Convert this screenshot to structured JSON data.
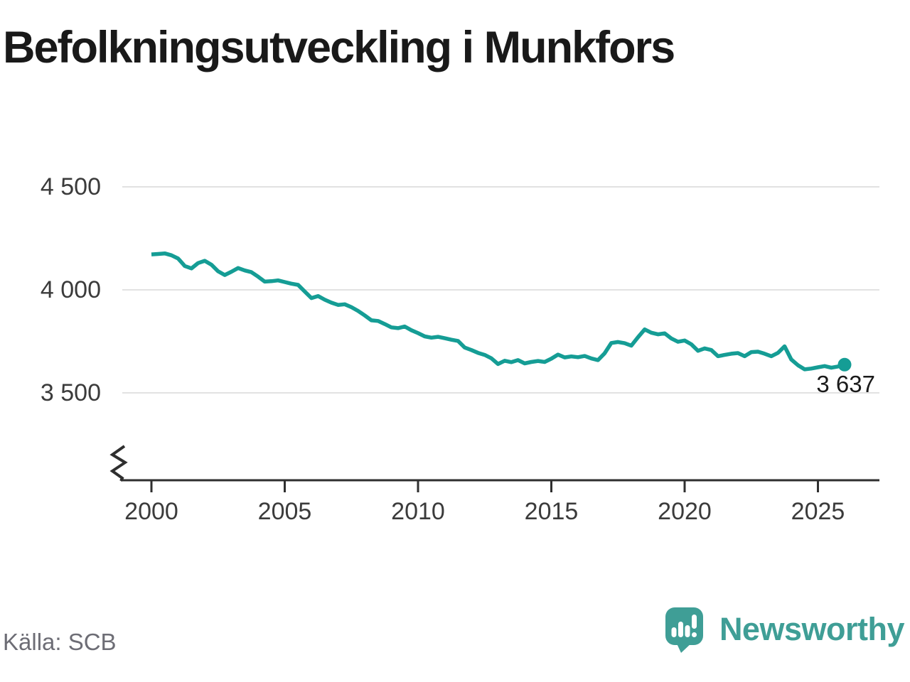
{
  "title": "Befolkningsutveckling i Munkfors",
  "source": "Källa: SCB",
  "branding": {
    "name": "Newsworthy",
    "icon": "newsworthy-speech-bubble-bars"
  },
  "colors": {
    "line": "#159d95",
    "logo": "#3f9e96",
    "grid": "#e2e2e2",
    "axis": "#2f2f2f",
    "title_text": "#191919",
    "tick_label": "#3b3b3b",
    "source_text": "#6d6d75"
  },
  "chart_data": {
    "type": "line",
    "title": "Befolkningsutveckling i Munkfors",
    "xlabel": "",
    "ylabel": "",
    "legend": "none",
    "grid": "horizontal",
    "axis_break_bottom_left": true,
    "xlim": [
      1998.85,
      2027.3
    ],
    "ylim": [
      3350,
      4580
    ],
    "x_ticks": [
      2000,
      2005,
      2010,
      2015,
      2020,
      2025
    ],
    "y_ticks": [
      {
        "value": 4500,
        "label": "4 500"
      },
      {
        "value": 4000,
        "label": "4 000"
      },
      {
        "value": 3500,
        "label": "3 500"
      }
    ],
    "last_value": 3637,
    "last_point_label": "3 637",
    "points": [
      [
        2000.0,
        4172
      ],
      [
        2000.25,
        4174
      ],
      [
        2000.5,
        4177
      ],
      [
        2000.75,
        4168
      ],
      [
        2001.0,
        4152
      ],
      [
        2001.25,
        4116
      ],
      [
        2001.5,
        4104
      ],
      [
        2001.75,
        4130
      ],
      [
        2002.0,
        4141
      ],
      [
        2002.25,
        4122
      ],
      [
        2002.5,
        4090
      ],
      [
        2002.75,
        4072
      ],
      [
        2003.0,
        4088
      ],
      [
        2003.25,
        4106
      ],
      [
        2003.5,
        4094
      ],
      [
        2003.75,
        4086
      ],
      [
        2004.0,
        4064
      ],
      [
        2004.25,
        4040
      ],
      [
        2004.5,
        4042
      ],
      [
        2004.75,
        4046
      ],
      [
        2005.0,
        4038
      ],
      [
        2005.25,
        4030
      ],
      [
        2005.5,
        4024
      ],
      [
        2005.75,
        3992
      ],
      [
        2006.0,
        3960
      ],
      [
        2006.25,
        3970
      ],
      [
        2006.5,
        3952
      ],
      [
        2006.75,
        3938
      ],
      [
        2007.0,
        3927
      ],
      [
        2007.25,
        3930
      ],
      [
        2007.5,
        3916
      ],
      [
        2007.75,
        3898
      ],
      [
        2008.0,
        3876
      ],
      [
        2008.25,
        3852
      ],
      [
        2008.5,
        3849
      ],
      [
        2008.75,
        3834
      ],
      [
        2009.0,
        3818
      ],
      [
        2009.25,
        3814
      ],
      [
        2009.5,
        3822
      ],
      [
        2009.75,
        3804
      ],
      [
        2010.0,
        3790
      ],
      [
        2010.25,
        3774
      ],
      [
        2010.5,
        3768
      ],
      [
        2010.75,
        3772
      ],
      [
        2011.0,
        3765
      ],
      [
        2011.25,
        3758
      ],
      [
        2011.5,
        3752
      ],
      [
        2011.75,
        3720
      ],
      [
        2012.0,
        3708
      ],
      [
        2012.25,
        3694
      ],
      [
        2012.5,
        3684
      ],
      [
        2012.75,
        3668
      ],
      [
        2013.0,
        3640
      ],
      [
        2013.25,
        3656
      ],
      [
        2013.5,
        3649
      ],
      [
        2013.75,
        3659
      ],
      [
        2014.0,
        3643
      ],
      [
        2014.25,
        3650
      ],
      [
        2014.5,
        3655
      ],
      [
        2014.75,
        3650
      ],
      [
        2015.0,
        3666
      ],
      [
        2015.25,
        3686
      ],
      [
        2015.5,
        3672
      ],
      [
        2015.75,
        3677
      ],
      [
        2016.0,
        3673
      ],
      [
        2016.25,
        3679
      ],
      [
        2016.5,
        3667
      ],
      [
        2016.75,
        3659
      ],
      [
        2017.0,
        3692
      ],
      [
        2017.25,
        3742
      ],
      [
        2017.5,
        3747
      ],
      [
        2017.75,
        3741
      ],
      [
        2018.0,
        3729
      ],
      [
        2018.25,
        3770
      ],
      [
        2018.5,
        3808
      ],
      [
        2018.75,
        3792
      ],
      [
        2019.0,
        3784
      ],
      [
        2019.25,
        3789
      ],
      [
        2019.5,
        3764
      ],
      [
        2019.75,
        3748
      ],
      [
        2020.0,
        3754
      ],
      [
        2020.25,
        3736
      ],
      [
        2020.5,
        3704
      ],
      [
        2020.75,
        3716
      ],
      [
        2021.0,
        3708
      ],
      [
        2021.25,
        3678
      ],
      [
        2021.5,
        3684
      ],
      [
        2021.75,
        3690
      ],
      [
        2022.0,
        3693
      ],
      [
        2022.25,
        3678
      ],
      [
        2022.5,
        3698
      ],
      [
        2022.75,
        3700
      ],
      [
        2023.0,
        3690
      ],
      [
        2023.25,
        3678
      ],
      [
        2023.5,
        3694
      ],
      [
        2023.75,
        3726
      ],
      [
        2024.0,
        3662
      ],
      [
        2024.25,
        3634
      ],
      [
        2024.5,
        3614
      ],
      [
        2024.75,
        3618
      ],
      [
        2025.0,
        3624
      ],
      [
        2025.25,
        3630
      ],
      [
        2025.5,
        3622
      ],
      [
        2025.75,
        3628
      ],
      [
        2026.0,
        3637
      ]
    ]
  }
}
